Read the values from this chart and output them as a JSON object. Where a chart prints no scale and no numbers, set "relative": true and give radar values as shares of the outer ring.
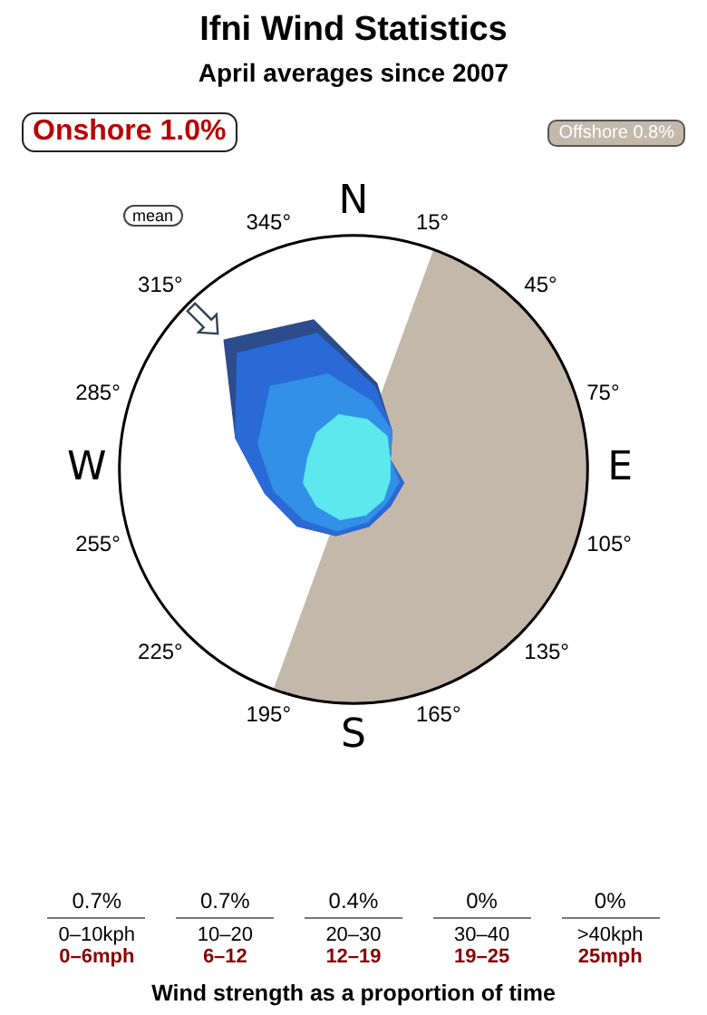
{
  "chart_data": {
    "type": "radar",
    "title": "Ifni Wind Statistics",
    "subtitle": "April averages since 2007",
    "relative": true,
    "categories": [
      "15°",
      "45°",
      "75°",
      "105°",
      "135°",
      "165°",
      "195°",
      "225°",
      "255°",
      "285°",
      "315°",
      "345°"
    ],
    "series": [
      {
        "color": "#5ce8ec",
        "values": [
          0.22,
          0.2,
          0.16,
          0.16,
          0.18,
          0.2,
          0.22,
          0.22,
          0.22,
          0.2,
          0.22,
          0.24
        ]
      },
      {
        "color": "#3290e6",
        "values": [
          0.3,
          0.23,
          0.16,
          0.2,
          0.2,
          0.23,
          0.27,
          0.3,
          0.35,
          0.42,
          0.5,
          0.42
        ]
      },
      {
        "color": "#2a6ad6",
        "values": [
          0.36,
          0.23,
          0.16,
          0.22,
          0.22,
          0.25,
          0.29,
          0.34,
          0.39,
          0.52,
          0.7,
          0.6
        ]
      },
      {
        "color": "#2c4c8c",
        "values": [
          0.38,
          0.23,
          0.16,
          0.22,
          0.22,
          0.25,
          0.29,
          0.34,
          0.39,
          0.52,
          0.78,
          0.66
        ]
      }
    ],
    "annotations": [
      "Onshore 1.0%",
      "Offshore 0.8%",
      "mean",
      "N",
      "E",
      "S",
      "W",
      "0.7%",
      "0–10kph",
      "0–6mph",
      "0.7%",
      "10–20",
      "6–12",
      "0.4%",
      "20–30",
      "12–19",
      "0%",
      "30–40",
      "19–25",
      "0%",
      ">40kph",
      "25mph",
      "Wind strength as a proportion of time"
    ]
  }
}
